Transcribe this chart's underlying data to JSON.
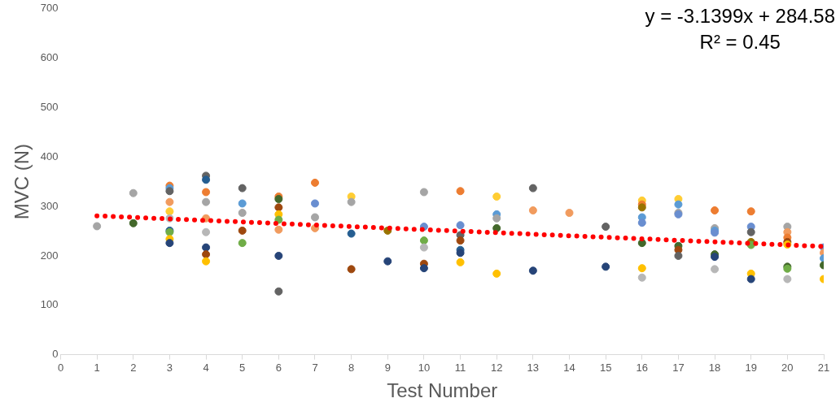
{
  "chart_data": {
    "type": "scatter",
    "xlabel": "Test Number",
    "ylabel": "MVC (N)",
    "xlim": [
      0,
      21
    ],
    "xticks": [
      0,
      1,
      2,
      3,
      4,
      5,
      6,
      7,
      8,
      9,
      10,
      11,
      12,
      13,
      14,
      15,
      16,
      17,
      18,
      19,
      20,
      21
    ],
    "ylim": [
      0,
      700
    ],
    "yticks": [
      0,
      100,
      200,
      300,
      400,
      500,
      600,
      700
    ],
    "grid": false,
    "legend": false,
    "marker": "circle",
    "annotations": [
      "y = -3.1399x + 284.58",
      "R² = 0.45"
    ],
    "series": [
      {
        "type": "scatter",
        "x": [
          1,
          2,
          2,
          3,
          3,
          3,
          3,
          3,
          3,
          3,
          3,
          3,
          3,
          4,
          4,
          4,
          4,
          4,
          4,
          4,
          4,
          4,
          5,
          5,
          5,
          5,
          5,
          6,
          6,
          6,
          6,
          6,
          6,
          6,
          6,
          7,
          7,
          7,
          7,
          8,
          8,
          8,
          8,
          9,
          9,
          10,
          10,
          10,
          10,
          10,
          10,
          11,
          11,
          11,
          11,
          11,
          11,
          11,
          12,
          12,
          12,
          12,
          12,
          13,
          13,
          13,
          14,
          15,
          15,
          16,
          16,
          16,
          16,
          16,
          16,
          16,
          16,
          17,
          17,
          17,
          17,
          17,
          17,
          17,
          18,
          18,
          18,
          18,
          18,
          18,
          18,
          19,
          19,
          19,
          19,
          19,
          19,
          19,
          20,
          20,
          20,
          20,
          20,
          20,
          20,
          20,
          21,
          21,
          21,
          21,
          21
        ],
        "values": [
          260,
          327,
          266,
          342,
          337,
          331,
          309,
          290,
          276,
          251,
          248,
          234,
          226,
          362,
          354,
          329,
          309,
          276,
          248,
          217,
          203,
          189,
          337,
          306,
          287,
          251,
          226,
          320,
          315,
          298,
          284,
          273,
          253,
          200,
          128,
          348,
          306,
          278,
          256,
          320,
          309,
          245,
          173,
          251,
          189,
          329,
          259,
          231,
          217,
          184,
          175,
          331,
          262,
          242,
          231,
          212,
          206,
          187,
          320,
          284,
          276,
          256,
          164,
          337,
          292,
          170,
          287,
          259,
          178,
          312,
          304,
          298,
          278,
          267,
          226,
          175,
          156,
          315,
          304,
          287,
          284,
          220,
          212,
          200,
          292,
          256,
          251,
          247,
          203,
          198,
          173,
          290,
          259,
          248,
          228,
          222,
          164,
          153,
          259,
          248,
          237,
          228,
          223,
          178,
          174,
          153,
          217,
          206,
          195,
          181,
          153
        ],
        "colors": [
          "#a5a5a5",
          "#a5a5a5",
          "#43682b",
          "#ed7d31",
          "#5b9bd5",
          "#636363",
          "#f19b5e",
          "#ffcd33",
          "#b7b7b7",
          "#255e91",
          "#70ad47",
          "#ffc000",
          "#264478",
          "#636363",
          "#255e91",
          "#ed7d31",
          "#a5a5a5",
          "#f19b5e",
          "#b7b7b7",
          "#264478",
          "#9e480e",
          "#ffc000",
          "#636363",
          "#5b9bd5",
          "#a5a5a5",
          "#9e480e",
          "#70ad47",
          "#ed7d31",
          "#43682b",
          "#9e480e",
          "#ffc000",
          "#70ad47",
          "#f19b5e",
          "#264478",
          "#636363",
          "#ed7d31",
          "#698ed0",
          "#a5a5a5",
          "#f19b5e",
          "#ffcd33",
          "#a5a5a5",
          "#255e91",
          "#9e480e",
          "#997300",
          "#264478",
          "#a5a5a5",
          "#698ed0",
          "#70ad47",
          "#b7b7b7",
          "#9e480e",
          "#264478",
          "#ed7d31",
          "#698ed0",
          "#636363",
          "#9e480e",
          "#255e91",
          "#264478",
          "#ffc000",
          "#ffcd33",
          "#5b9bd5",
          "#a5a5a5",
          "#43682b",
          "#ffc000",
          "#636363",
          "#f19b5e",
          "#264478",
          "#f19b5e",
          "#636363",
          "#264478",
          "#ffcd33",
          "#ed7d31",
          "#997300",
          "#5b9bd5",
          "#698ed0",
          "#43682b",
          "#ffc000",
          "#b7b7b7",
          "#ffcd33",
          "#5b9bd5",
          "#a5a5a5",
          "#698ed0",
          "#43682b",
          "#9e480e",
          "#636363",
          "#ed7d31",
          "#a5a5a5",
          "#5b9bd5",
          "#698ed0",
          "#43682b",
          "#264478",
          "#b7b7b7",
          "#ed7d31",
          "#698ed0",
          "#636363",
          "#997300",
          "#70ad47",
          "#ffc000",
          "#264478",
          "#a5a5a5",
          "#f19b5e",
          "#ed7d31",
          "#9e480e",
          "#ffc000",
          "#43682b",
          "#70ad47",
          "#b7b7b7",
          "#698ed0",
          "#f19b5e",
          "#5b9bd5",
          "#43682b",
          "#ffc000"
        ]
      },
      {
        "type": "line",
        "x": [
          1,
          21
        ],
        "values": [
          281,
          219
        ],
        "color": "#ff0000",
        "line_style": "dotted",
        "marker": "none"
      }
    ]
  }
}
